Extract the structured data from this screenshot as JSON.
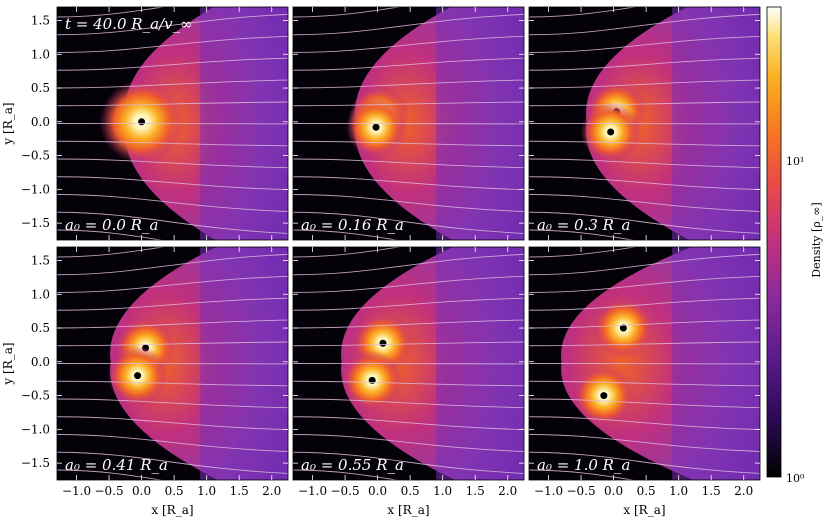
{
  "figure": {
    "time_label": "t = 40.0 R_a/v_∞",
    "x_axis_label": "x [R_a]",
    "y_axis_label": "y [R_a]",
    "x_ticks": [
      "−1.0",
      "−0.5",
      "0.0",
      "0.5",
      "1.0",
      "1.5",
      "2.0"
    ],
    "y_ticks": [
      "1.5",
      "1.0",
      "0.5",
      "0.0",
      "−0.5",
      "−1.0",
      "−1.5"
    ],
    "x_tick_values": [
      -1.0,
      -0.5,
      0.0,
      0.5,
      1.0,
      1.5,
      2.0
    ],
    "y_tick_values": [
      1.5,
      1.0,
      0.5,
      0.0,
      -0.5,
      -1.0,
      -1.5
    ],
    "xlim": [
      -1.3,
      2.25
    ],
    "ylim": [
      -1.75,
      1.7
    ]
  },
  "panels": [
    {
      "label": "a₀ = 0.0 R_a",
      "separation": 0.0
    },
    {
      "label": "a₀ = 0.16 R_a",
      "separation": 0.16
    },
    {
      "label": "a₀ = 0.3 R_a",
      "separation": 0.3
    },
    {
      "label": "a₀ = 0.41 R_a",
      "separation": 0.41
    },
    {
      "label": "a₀ = 0.55 R_a",
      "separation": 0.55
    },
    {
      "label": "a₀ = 1.0 R_a",
      "separation": 1.0
    }
  ],
  "colorbar": {
    "label": "Density [ρ_∞]",
    "scale": "log",
    "range": [
      1,
      15
    ],
    "tick_labels": [
      "10¹",
      "10⁰"
    ],
    "colormap": [
      "#000000",
      "#2a0a52",
      "#5a1a8a",
      "#8a2a9a",
      "#c0307e",
      "#e84a4a",
      "#f7791f",
      "#fbb024",
      "#fde27a",
      "#ffffff"
    ]
  },
  "colors": {
    "streamline": "#ddbbdd",
    "background_gas": "#7a2fb8"
  }
}
